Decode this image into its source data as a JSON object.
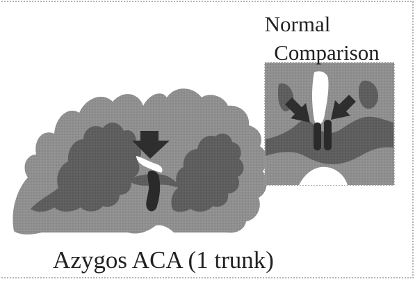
{
  "labels": {
    "main_caption": "Azygos ACA (1 trunk)",
    "inset_title_line1": "Normal",
    "inset_title_line2": "Comparison"
  },
  "colors": {
    "cortex_gray": "#8f8f8f",
    "white_matter_dark": "#5e5e5e",
    "vessel_black": "#2a2a2a",
    "arrow_dark": "#2e2e2e",
    "border_dotted": "#9a9a9a",
    "text": "#222222",
    "background": "#ffffff"
  }
}
